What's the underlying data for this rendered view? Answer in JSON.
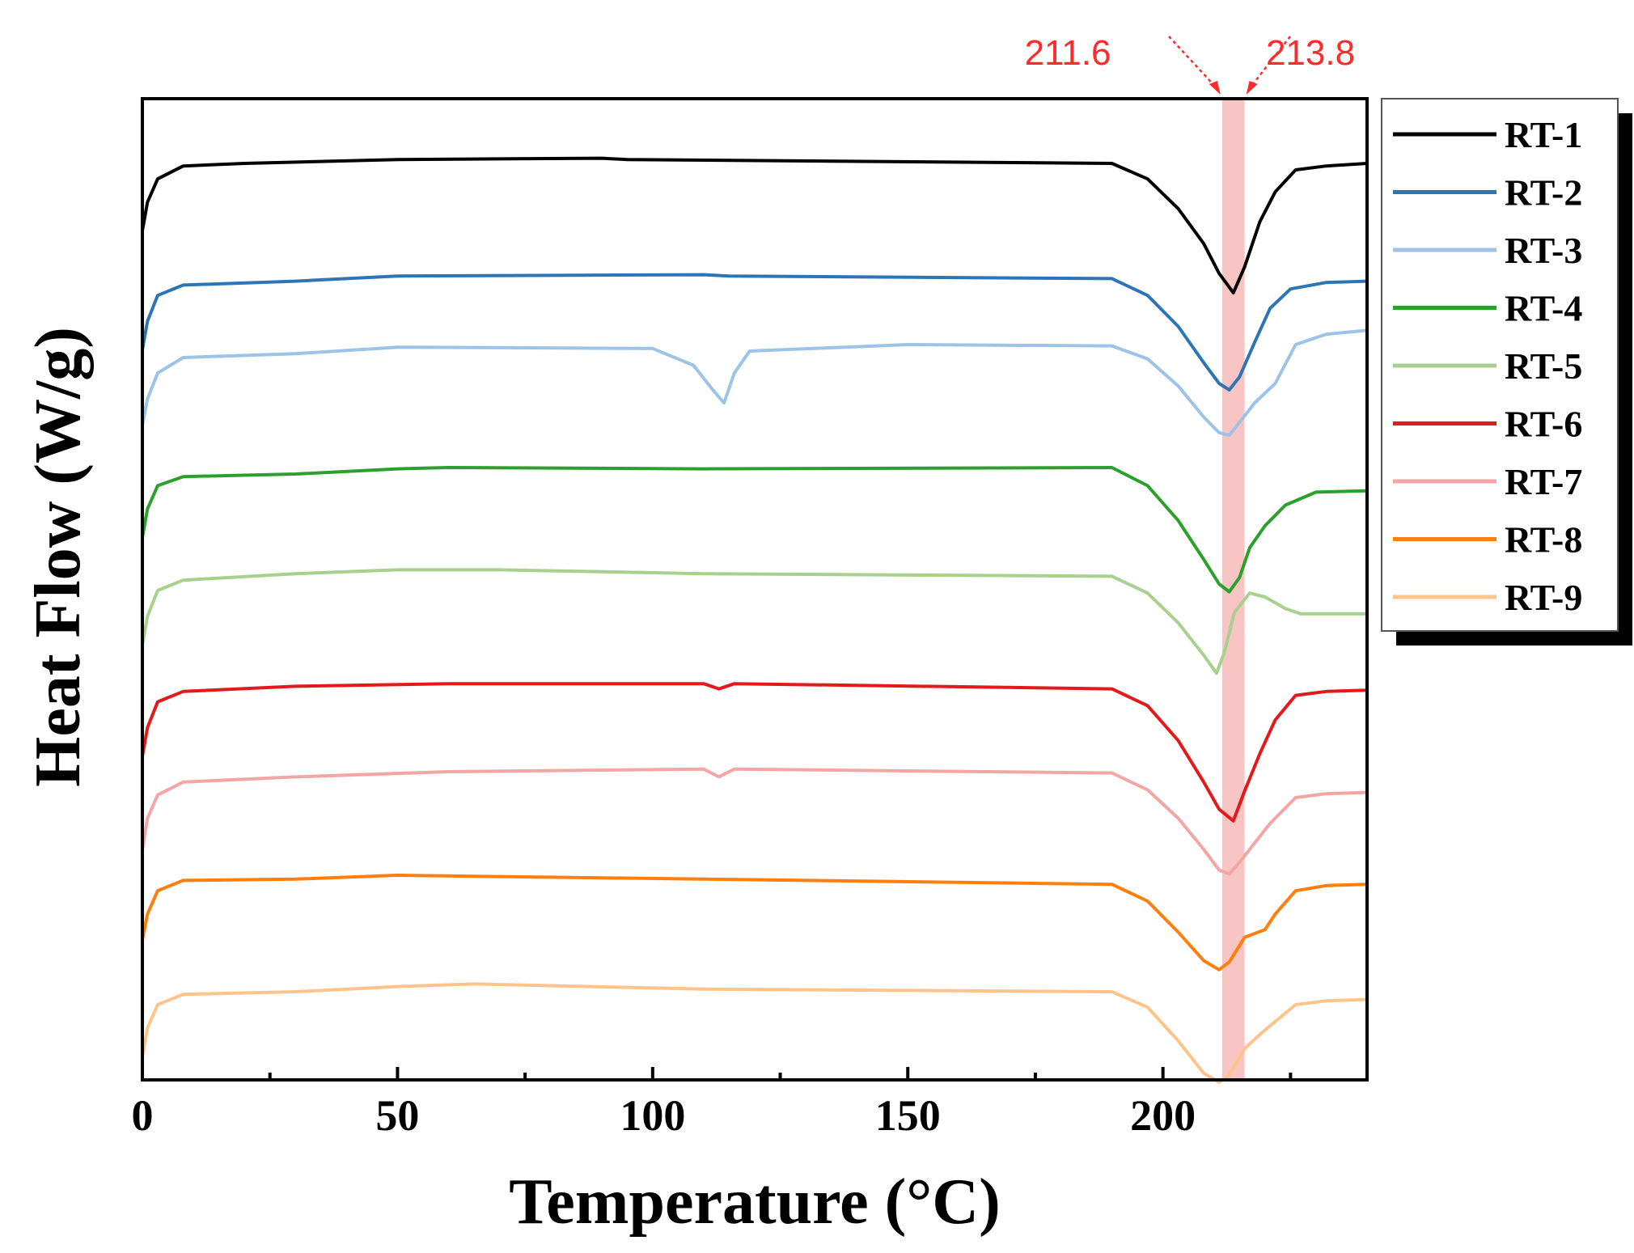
{
  "chart_data": {
    "type": "line",
    "title": "",
    "xlabel": "Temperature (°C)",
    "ylabel": "Heat Flow (W/g)",
    "xlim": [
      0,
      240
    ],
    "xticks": [
      0,
      50,
      100,
      150,
      200
    ],
    "x_minor_ticks": [
      25,
      75,
      125,
      175,
      225
    ],
    "y_axis_ticks": false,
    "highlight_band": {
      "x0": 211.6,
      "x1": 216.0,
      "color": "#f9c4c4"
    },
    "annotations": [
      {
        "text": "211.6",
        "x": 211.6,
        "color": "#ff2a2a"
      },
      {
        "text": "213.8",
        "x": 213.8,
        "color": "#ff2a2a"
      }
    ],
    "legend_position": "right outside",
    "series": [
      {
        "name": "RT-1",
        "color": "#000000",
        "points": [
          [
            0,
            102
          ],
          [
            1,
            80
          ],
          [
            3,
            62
          ],
          [
            8,
            52
          ],
          [
            20,
            50
          ],
          [
            50,
            47
          ],
          [
            90,
            46
          ],
          [
            95,
            47
          ],
          [
            190,
            50
          ],
          [
            197,
            62
          ],
          [
            203,
            85
          ],
          [
            208,
            112
          ],
          [
            211,
            135
          ],
          [
            213.8,
            150
          ],
          [
            216,
            130
          ],
          [
            219,
            95
          ],
          [
            222,
            72
          ],
          [
            226,
            55
          ],
          [
            232,
            52
          ],
          [
            240,
            50
          ]
        ]
      },
      {
        "name": "RT-2",
        "color": "#2e75b6",
        "points": [
          [
            0,
            194
          ],
          [
            1,
            172
          ],
          [
            3,
            152
          ],
          [
            8,
            144
          ],
          [
            30,
            141
          ],
          [
            50,
            137
          ],
          [
            110,
            136
          ],
          [
            115,
            137
          ],
          [
            190,
            139
          ],
          [
            197,
            152
          ],
          [
            203,
            176
          ],
          [
            208,
            204
          ],
          [
            211,
            220
          ],
          [
            213,
            225
          ],
          [
            215,
            215
          ],
          [
            218,
            188
          ],
          [
            221,
            162
          ],
          [
            225,
            147
          ],
          [
            232,
            142
          ],
          [
            240,
            141
          ]
        ]
      },
      {
        "name": "RT-3",
        "color": "#9dc3e6",
        "points": [
          [
            0,
            252
          ],
          [
            1,
            232
          ],
          [
            3,
            212
          ],
          [
            8,
            200
          ],
          [
            30,
            197
          ],
          [
            50,
            192
          ],
          [
            100,
            193
          ],
          [
            108,
            206
          ],
          [
            112,
            226
          ],
          [
            114,
            235
          ],
          [
            116,
            212
          ],
          [
            119,
            195
          ],
          [
            150,
            190
          ],
          [
            190,
            191
          ],
          [
            197,
            201
          ],
          [
            203,
            222
          ],
          [
            208,
            246
          ],
          [
            211,
            258
          ],
          [
            213,
            260
          ],
          [
            215,
            250
          ],
          [
            218,
            235
          ],
          [
            222,
            220
          ],
          [
            226,
            190
          ],
          [
            232,
            182
          ],
          [
            240,
            179
          ]
        ]
      },
      {
        "name": "RT-4",
        "color": "#2ca02c",
        "points": [
          [
            0,
            339
          ],
          [
            1,
            317
          ],
          [
            3,
            299
          ],
          [
            8,
            292
          ],
          [
            30,
            290
          ],
          [
            50,
            286
          ],
          [
            60,
            285
          ],
          [
            110,
            286
          ],
          [
            190,
            285
          ],
          [
            197,
            299
          ],
          [
            203,
            326
          ],
          [
            208,
            356
          ],
          [
            211,
            375
          ],
          [
            213,
            381
          ],
          [
            215,
            370
          ],
          [
            217,
            347
          ],
          [
            220,
            330
          ],
          [
            224,
            314
          ],
          [
            230,
            304
          ],
          [
            240,
            303
          ]
        ]
      },
      {
        "name": "RT-5",
        "color": "#a9d18e",
        "points": [
          [
            0,
            422
          ],
          [
            1,
            400
          ],
          [
            3,
            380
          ],
          [
            8,
            372
          ],
          [
            30,
            367
          ],
          [
            50,
            364
          ],
          [
            70,
            364
          ],
          [
            110,
            367
          ],
          [
            190,
            369
          ],
          [
            197,
            382
          ],
          [
            203,
            405
          ],
          [
            208,
            430
          ],
          [
            210.5,
            444
          ],
          [
            212,
            428
          ],
          [
            214,
            397
          ],
          [
            217,
            382
          ],
          [
            220,
            385
          ],
          [
            224,
            394
          ],
          [
            227,
            398
          ],
          [
            240,
            398
          ]
        ]
      },
      {
        "name": "RT-6",
        "color": "#e31a1c",
        "points": [
          [
            0,
            508
          ],
          [
            1,
            486
          ],
          [
            3,
            466
          ],
          [
            8,
            458
          ],
          [
            30,
            454
          ],
          [
            60,
            452
          ],
          [
            110,
            452
          ],
          [
            113,
            456
          ],
          [
            116,
            452
          ],
          [
            190,
            456
          ],
          [
            197,
            469
          ],
          [
            203,
            496
          ],
          [
            208,
            528
          ],
          [
            211,
            549
          ],
          [
            213.8,
            558
          ],
          [
            216,
            535
          ],
          [
            219,
            506
          ],
          [
            222,
            480
          ],
          [
            226,
            461
          ],
          [
            232,
            458
          ],
          [
            240,
            457
          ]
        ]
      },
      {
        "name": "RT-7",
        "color": "#f4a6a6",
        "points": [
          [
            0,
            580
          ],
          [
            1,
            556
          ],
          [
            3,
            538
          ],
          [
            8,
            528
          ],
          [
            30,
            524
          ],
          [
            60,
            520
          ],
          [
            110,
            518
          ],
          [
            113,
            524
          ],
          [
            116,
            518
          ],
          [
            190,
            521
          ],
          [
            197,
            534
          ],
          [
            203,
            556
          ],
          [
            208,
            580
          ],
          [
            211,
            596
          ],
          [
            213,
            599
          ],
          [
            215,
            590
          ],
          [
            218,
            575
          ],
          [
            221,
            560
          ],
          [
            226,
            540
          ],
          [
            232,
            537
          ],
          [
            240,
            536
          ]
        ]
      },
      {
        "name": "RT-8",
        "color": "#ff7f0e",
        "points": [
          [
            0,
            650
          ],
          [
            1,
            630
          ],
          [
            3,
            612
          ],
          [
            8,
            604
          ],
          [
            30,
            603
          ],
          [
            50,
            600
          ],
          [
            110,
            603
          ],
          [
            190,
            607
          ],
          [
            197,
            620
          ],
          [
            203,
            644
          ],
          [
            208,
            666
          ],
          [
            211,
            673
          ],
          [
            213,
            667
          ],
          [
            216,
            648
          ],
          [
            220,
            642
          ],
          [
            222,
            630
          ],
          [
            226,
            612
          ],
          [
            232,
            608
          ],
          [
            240,
            607
          ]
        ]
      },
      {
        "name": "RT-9",
        "color": "#ffc48a",
        "points": [
          [
            0,
            740
          ],
          [
            1,
            718
          ],
          [
            3,
            700
          ],
          [
            8,
            692
          ],
          [
            30,
            690
          ],
          [
            50,
            686
          ],
          [
            65,
            684
          ],
          [
            110,
            688
          ],
          [
            190,
            690
          ],
          [
            197,
            702
          ],
          [
            203,
            728
          ],
          [
            208,
            753
          ],
          [
            211,
            760
          ],
          [
            213,
            754
          ],
          [
            216,
            734
          ],
          [
            219,
            723
          ],
          [
            222,
            713
          ],
          [
            226,
            700
          ],
          [
            232,
            697
          ],
          [
            240,
            696
          ]
        ]
      }
    ]
  }
}
